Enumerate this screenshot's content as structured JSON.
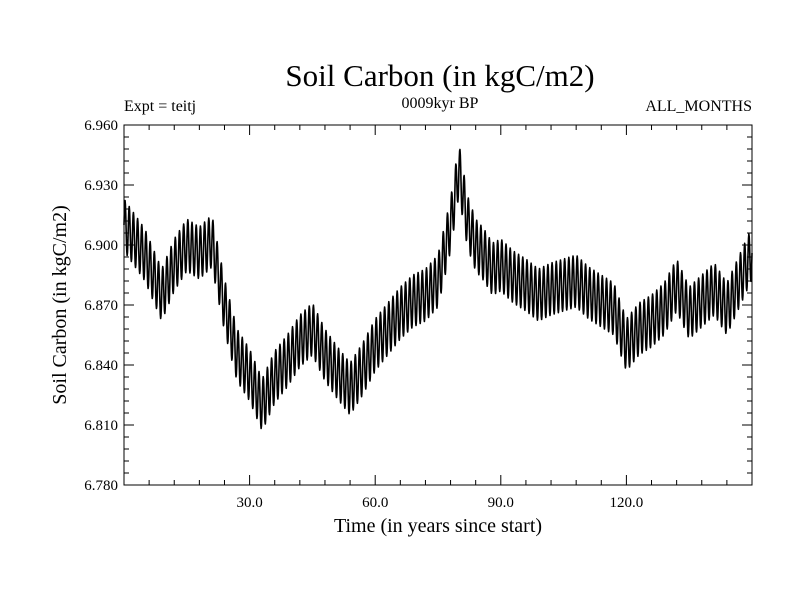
{
  "chart_data": {
    "type": "line",
    "title": "Soil Carbon (in kgC/m2)",
    "subtitle_left": "Expt = teitj",
    "subtitle_center": "0009kyr BP",
    "subtitle_right": "ALL_MONTHS",
    "xlabel": "Time (in years since start)",
    "ylabel": "Soil Carbon (in kgC/m2)",
    "xlim": [
      0,
      150
    ],
    "ylim": [
      6.78,
      6.96
    ],
    "x_ticks": [
      30,
      60,
      90,
      120
    ],
    "x_tick_labels": [
      "30.0",
      "60.0",
      "90.0",
      "120.0"
    ],
    "y_ticks": [
      6.78,
      6.81,
      6.84,
      6.87,
      6.9,
      6.93,
      6.96
    ],
    "y_tick_labels": [
      "6.780",
      "6.810",
      "6.840",
      "6.870",
      "6.900",
      "6.930",
      "6.960"
    ],
    "seasonal_amplitude": 0.013,
    "series": [
      {
        "name": "Soil Carbon",
        "color": "#000000",
        "smoothed_trend": {
          "x": [
            0,
            5,
            9,
            12,
            15,
            18,
            21,
            24,
            27,
            30,
            33,
            36,
            39,
            42,
            45,
            48,
            51,
            54,
            57,
            60,
            63,
            66,
            69,
            72,
            75,
            78,
            80,
            82,
            84,
            86,
            88,
            90,
            93,
            96,
            99,
            102,
            105,
            108,
            111,
            114,
            117,
            120,
            123,
            126,
            129,
            132,
            135,
            138,
            141,
            144,
            147,
            150
          ],
          "y": [
            6.91,
            6.895,
            6.875,
            6.89,
            6.9,
            6.896,
            6.902,
            6.87,
            6.845,
            6.835,
            6.82,
            6.834,
            6.842,
            6.852,
            6.858,
            6.845,
            6.836,
            6.828,
            6.838,
            6.85,
            6.858,
            6.866,
            6.872,
            6.875,
            6.882,
            6.91,
            6.938,
            6.912,
            6.9,
            6.895,
            6.888,
            6.89,
            6.884,
            6.88,
            6.875,
            6.878,
            6.88,
            6.882,
            6.876,
            6.872,
            6.868,
            6.85,
            6.858,
            6.862,
            6.868,
            6.88,
            6.866,
            6.872,
            6.878,
            6.868,
            6.882,
            6.896
          ]
        }
      }
    ]
  }
}
